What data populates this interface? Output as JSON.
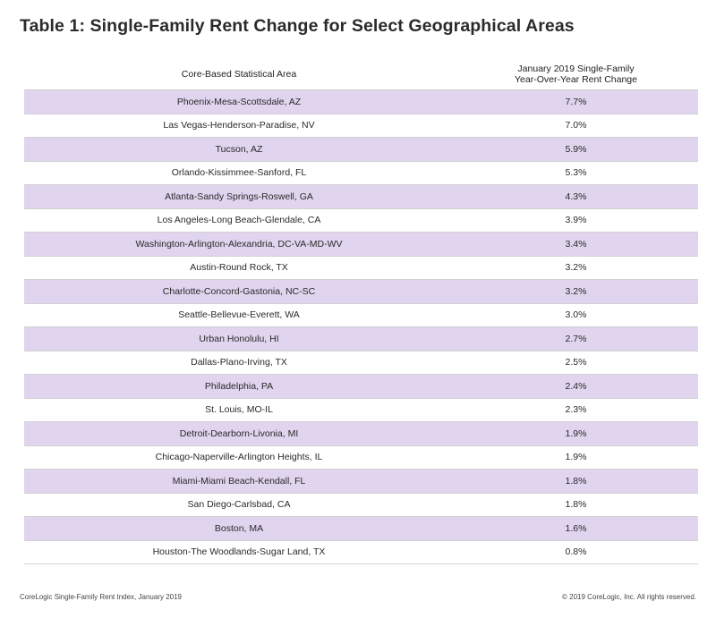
{
  "title": "Table 1: Single-Family Rent Change for Select Geographical Areas",
  "header": {
    "col1": "Core-Based Statistical Area",
    "col2_line1": "January 2019 Single-Family",
    "col2_line2": "Year-Over-Year Rent Change"
  },
  "colors": {
    "shaded_row": "#e0d4ee",
    "unshaded_row": "#ffffff"
  },
  "chart_data": {
    "type": "table",
    "title": "Table 1: Single-Family Rent Change for Select Geographical Areas",
    "columns": [
      "Core-Based Statistical Area",
      "January 2019 Single-Family Year-Over-Year Rent Change"
    ],
    "rows": [
      [
        "Phoenix-Mesa-Scottsdale, AZ",
        "7.7%"
      ],
      [
        "Las Vegas-Henderson-Paradise, NV",
        "7.0%"
      ],
      [
        "Tucson, AZ",
        "5.9%"
      ],
      [
        "Orlando-Kissimmee-Sanford, FL",
        "5.3%"
      ],
      [
        "Atlanta-Sandy Springs-Roswell, GA",
        "4.3%"
      ],
      [
        "Los Angeles-Long Beach-Glendale, CA",
        "3.9%"
      ],
      [
        "Washington-Arlington-Alexandria, DC-VA-MD-WV",
        "3.4%"
      ],
      [
        "Austin-Round Rock, TX",
        "3.2%"
      ],
      [
        "Charlotte-Concord-Gastonia, NC-SC",
        "3.2%"
      ],
      [
        "Seattle-Bellevue-Everett, WA",
        "3.0%"
      ],
      [
        "Urban Honolulu, HI",
        "2.7%"
      ],
      [
        "Dallas-Plano-Irving, TX",
        "2.5%"
      ],
      [
        "Philadelphia, PA",
        "2.4%"
      ],
      [
        "St. Louis, MO-IL",
        "2.3%"
      ],
      [
        "Detroit-Dearborn-Livonia, MI",
        "1.9%"
      ],
      [
        "Chicago-Naperville-Arlington Heights, IL",
        "1.9%"
      ],
      [
        "Miami-Miami Beach-Kendall, FL",
        "1.8%"
      ],
      [
        "San Diego-Carlsbad, CA",
        "1.8%"
      ],
      [
        "Boston, MA",
        "1.6%"
      ],
      [
        "Houston-The Woodlands-Sugar Land, TX",
        "0.8%"
      ]
    ]
  },
  "footer": {
    "left": "CoreLogic Single-Family Rent Index, January 2019",
    "right": "© 2019 CoreLogic, Inc. All rights reserved."
  }
}
